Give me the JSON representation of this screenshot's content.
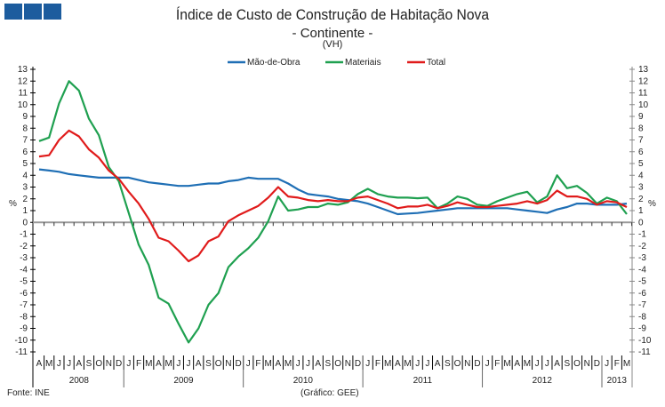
{
  "chart_data": {
    "type": "line",
    "title": "Índice de Custo de Construção de Habitação Nova",
    "subtitle": "- Continente -",
    "subtitle2": "(VH)",
    "ylabel": "%",
    "ylim": [
      -11,
      13
    ],
    "yticks": [
      13,
      12,
      11,
      10,
      9,
      8,
      7,
      6,
      5,
      4,
      3,
      2,
      1,
      0,
      -1,
      -2,
      -3,
      -4,
      -5,
      -6,
      -7,
      -8,
      -9,
      -10,
      -11
    ],
    "legend_position": "top-center",
    "months": [
      "A",
      "M",
      "J",
      "J",
      "A",
      "S",
      "O",
      "N",
      "D",
      "J",
      "F",
      "M",
      "A",
      "M",
      "J",
      "J",
      "A",
      "S",
      "O",
      "N",
      "D",
      "J",
      "F",
      "M",
      "A",
      "M",
      "J",
      "J",
      "A",
      "S",
      "O",
      "N",
      "D",
      "J",
      "F",
      "M",
      "A",
      "M",
      "J",
      "J",
      "A",
      "S",
      "O",
      "N",
      "D",
      "J",
      "F",
      "M",
      "A",
      "M",
      "J",
      "J",
      "A",
      "S",
      "O",
      "N",
      "D",
      "J",
      "F",
      "M"
    ],
    "years": [
      {
        "label": "2008",
        "start": 0,
        "count": 9
      },
      {
        "label": "2009",
        "start": 9,
        "count": 12
      },
      {
        "label": "2010",
        "start": 21,
        "count": 12
      },
      {
        "label": "2011",
        "start": 33,
        "count": 12
      },
      {
        "label": "2012",
        "start": 45,
        "count": 12
      },
      {
        "label": "2013",
        "start": 57,
        "count": 3
      }
    ],
    "series": [
      {
        "name": "Mão-de-Obra",
        "color": "#1f6fb5",
        "values": [
          4.5,
          4.4,
          4.3,
          4.1,
          4.0,
          3.9,
          3.8,
          3.8,
          3.8,
          3.8,
          3.6,
          3.4,
          3.3,
          3.2,
          3.1,
          3.1,
          3.2,
          3.3,
          3.3,
          3.5,
          3.6,
          3.8,
          3.7,
          3.7,
          3.7,
          3.3,
          2.8,
          2.4,
          2.3,
          2.2,
          2.0,
          1.9,
          1.8,
          1.6,
          1.3,
          1.0,
          0.7,
          0.75,
          0.8,
          0.9,
          1.0,
          1.1,
          1.2,
          1.2,
          1.2,
          1.2,
          1.2,
          1.2,
          1.1,
          1.0,
          0.9,
          0.8,
          1.1,
          1.3,
          1.6,
          1.6,
          1.5,
          1.5,
          1.5,
          1.6
        ]
      },
      {
        "name": "Materiais",
        "color": "#1fa050",
        "values": [
          6.9,
          7.2,
          10.1,
          12.0,
          11.2,
          8.8,
          7.4,
          4.7,
          3.5,
          0.8,
          -1.9,
          -3.6,
          -6.4,
          -6.9,
          -8.6,
          -10.2,
          -9.0,
          -7.0,
          -6.0,
          -3.8,
          -2.9,
          -2.2,
          -1.3,
          0.1,
          2.2,
          1.0,
          1.1,
          1.3,
          1.3,
          1.6,
          1.5,
          1.7,
          2.4,
          2.85,
          2.4,
          2.2,
          2.1,
          2.1,
          2.05,
          2.1,
          1.2,
          1.6,
          2.2,
          2.0,
          1.5,
          1.4,
          1.8,
          2.1,
          2.4,
          2.6,
          1.7,
          2.2,
          4.0,
          2.9,
          3.1,
          2.5,
          1.6,
          2.1,
          1.8,
          0.7
        ]
      },
      {
        "name": "Total",
        "color": "#e01b1b",
        "values": [
          5.6,
          5.7,
          7.0,
          7.8,
          7.3,
          6.2,
          5.5,
          4.4,
          3.7,
          2.6,
          1.6,
          0.3,
          -1.3,
          -1.6,
          -2.4,
          -3.3,
          -2.8,
          -1.6,
          -1.2,
          0.1,
          0.6,
          1.0,
          1.4,
          2.1,
          3.0,
          2.2,
          2.1,
          1.9,
          1.8,
          1.9,
          1.8,
          1.8,
          2.1,
          2.2,
          1.9,
          1.6,
          1.2,
          1.35,
          1.35,
          1.5,
          1.2,
          1.4,
          1.7,
          1.5,
          1.3,
          1.3,
          1.4,
          1.5,
          1.6,
          1.8,
          1.6,
          1.9,
          2.7,
          2.2,
          2.2,
          2.0,
          1.5,
          1.8,
          1.7,
          1.3
        ]
      }
    ]
  },
  "footer": {
    "source": "Fonte: INE",
    "credit": "(Gráfico: GEE)"
  }
}
